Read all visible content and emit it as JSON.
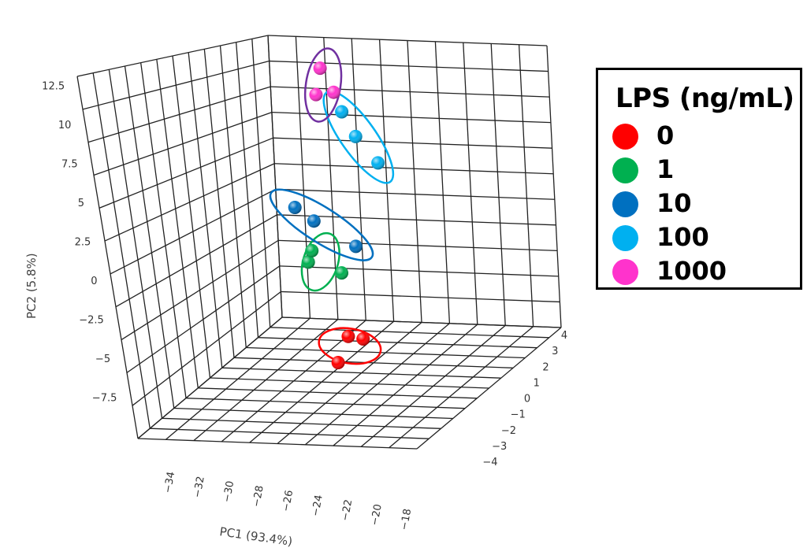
{
  "chart_data": {
    "type": "scatter",
    "subtype": "3d-pca-scatter",
    "axes": {
      "x": {
        "label": "PC1 (93.4%)",
        "range": [
          -35,
          -17
        ],
        "ticks": [
          -34,
          -32,
          -30,
          -28,
          -26,
          -24,
          -22,
          -20,
          -18
        ]
      },
      "y": {
        "label": "PC2 (5.8%)",
        "range": [
          -9,
          15
        ],
        "ticks": [
          "12.5",
          "10",
          "7.5",
          "5",
          "2.5",
          "0",
          "−2.5",
          "−5",
          "−7.5"
        ]
      },
      "z": {
        "label": "",
        "range": [
          -5,
          5
        ],
        "ticks": [
          "4",
          "3",
          "2",
          "1",
          "0",
          "−1",
          "−2",
          "−3",
          "−4"
        ]
      }
    },
    "grid": true,
    "legend": {
      "title": "LPS (ng/mL)",
      "placement": "right",
      "entries": [
        {
          "name": "0",
          "color": "#ff0000"
        },
        {
          "name": "1",
          "color": "#00b050"
        },
        {
          "name": "10",
          "color": "#0070c0"
        },
        {
          "name": "100",
          "color": "#00b0f0"
        },
        {
          "name": "1000",
          "color": "#ff33cc"
        }
      ]
    },
    "series": [
      {
        "name": "0",
        "color": "#ff0000",
        "ellipse_color": "#ff0000",
        "points": [
          {
            "x": -28.5,
            "y": -4.5,
            "z": -1.5
          },
          {
            "x": -27,
            "y": -7,
            "z": 0
          },
          {
            "x": -24,
            "y": -6.5,
            "z": 0.5
          }
        ]
      },
      {
        "name": "1",
        "color": "#00b050",
        "ellipse_color": "#00b050",
        "points": [
          {
            "x": -21.5,
            "y": -2,
            "z": 2.5
          },
          {
            "x": -21,
            "y": -3,
            "z": 1.5
          },
          {
            "x": -19.5,
            "y": -2,
            "z": 3
          }
        ]
      },
      {
        "name": "10",
        "color": "#0070c0",
        "ellipse_color": "#0070c0",
        "points": [
          {
            "x": -28,
            "y": 2,
            "z": -1.5
          },
          {
            "x": -22,
            "y": 1.5,
            "z": 2
          },
          {
            "x": -19.5,
            "y": 1.5,
            "z": 3.5
          }
        ]
      },
      {
        "name": "100",
        "color": "#00b0f0",
        "ellipse_color": "#00b0f0",
        "points": [
          {
            "x": -29,
            "y": 12,
            "z": -2
          },
          {
            "x": -28,
            "y": 10,
            "z": -2
          },
          {
            "x": -27.5,
            "y": 8,
            "z": -2.5
          }
        ]
      },
      {
        "name": "1000",
        "color": "#ff33cc",
        "ellipse_color": "#7030a0",
        "points": [
          {
            "x": -26,
            "y": 12.5,
            "z": 0
          },
          {
            "x": -23,
            "y": 12,
            "z": 0.5
          },
          {
            "x": -17.5,
            "y": 12.5,
            "z": 3
          }
        ]
      }
    ]
  }
}
